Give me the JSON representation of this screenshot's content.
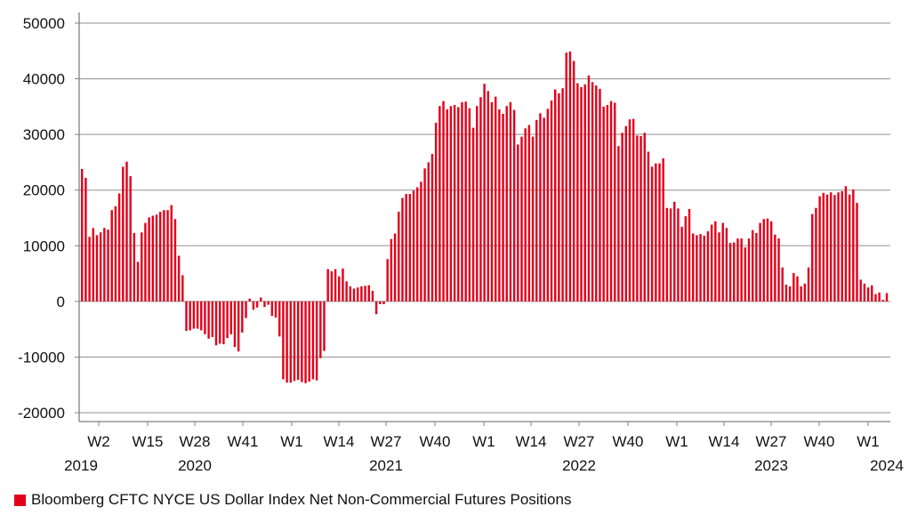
{
  "chart_data": {
    "type": "bar",
    "title": "",
    "xlabel": "",
    "ylabel": "",
    "ylim": [
      -20000,
      50000
    ],
    "yticks": [
      50000,
      40000,
      30000,
      20000,
      10000,
      0,
      -10000,
      -20000
    ],
    "grid": "horizontal",
    "legend_position": "bottom-left",
    "colors": {
      "bar": "#e3001b",
      "grid": "#a6a6a6",
      "axis": "#808080"
    },
    "xticks": [
      "W2",
      "W15",
      "W28",
      "W41",
      "W1",
      "W14",
      "W27",
      "W40",
      "W1",
      "W14",
      "W27",
      "W40",
      "W1",
      "W14",
      "W27",
      "W40",
      "W1"
    ],
    "xyears": [
      "2019",
      "2020",
      "2021",
      "2022",
      "2023",
      "2024"
    ],
    "series": [
      {
        "name": "Bloomberg CFTC NYCE US Dollar Index Net Non-Commercial Futures Positions",
        "values": [
          23800,
          22200,
          11600,
          13200,
          11900,
          12400,
          13200,
          12900,
          16400,
          17100,
          19400,
          24200,
          25100,
          22500,
          12300,
          7100,
          12400,
          14100,
          15100,
          15400,
          15600,
          16100,
          16400,
          16400,
          17300,
          14800,
          8200,
          4700,
          -5300,
          -5200,
          -4900,
          -4900,
          -5200,
          -5900,
          -6700,
          -6400,
          -7900,
          -7600,
          -7700,
          -6600,
          -5900,
          -8200,
          -9000,
          -5600,
          -3000,
          500,
          -1500,
          -1100,
          700,
          -1000,
          -600,
          -2600,
          -2900,
          -6300,
          -14000,
          -14600,
          -14600,
          -14300,
          -14100,
          -14500,
          -14700,
          -14400,
          -14000,
          -14200,
          -10200,
          -8900,
          5800,
          5400,
          5800,
          4500,
          5900,
          3600,
          2700,
          2300,
          2500,
          2700,
          2800,
          2900,
          1900,
          -2300,
          -500,
          -500,
          7600,
          11200,
          12200,
          16100,
          18600,
          19300,
          19300,
          19900,
          20500,
          21500,
          23900,
          25000,
          26500,
          32100,
          35100,
          36000,
          34500,
          35100,
          35300,
          34900,
          35800,
          35900,
          34700,
          31200,
          35100,
          36700,
          39100,
          37800,
          35800,
          36800,
          34500,
          33700,
          35100,
          35800,
          34400,
          28200,
          29600,
          31100,
          31700,
          29600,
          32600,
          33800,
          33000,
          34600,
          36100,
          38100,
          37400,
          38300,
          44700,
          44900,
          43200,
          39200,
          38500,
          39000,
          40600,
          39400,
          38800,
          38200,
          35000,
          35300,
          36000,
          35700,
          27900,
          30300,
          31500,
          32700,
          32800,
          29800,
          29700,
          30300,
          26900,
          24200,
          24800,
          24800,
          25700,
          16800,
          16700,
          17900,
          16700,
          13400,
          15300,
          16600,
          12200,
          11900,
          12100,
          11800,
          12600,
          13800,
          14400,
          12400,
          14100,
          13200,
          10500,
          10600,
          11300,
          11300,
          9700,
          11300,
          12800,
          12300,
          14100,
          14800,
          14900,
          14400,
          12000,
          11300,
          6100,
          3000,
          2700,
          5100,
          4500,
          2700,
          3200,
          6100,
          15700,
          16800,
          18900,
          19500,
          19200,
          19600,
          19100,
          19600,
          19800,
          20700,
          19200,
          20100,
          17700,
          3900,
          3200,
          2500,
          2900,
          1300,
          1600,
          300,
          1500
        ]
      }
    ]
  }
}
